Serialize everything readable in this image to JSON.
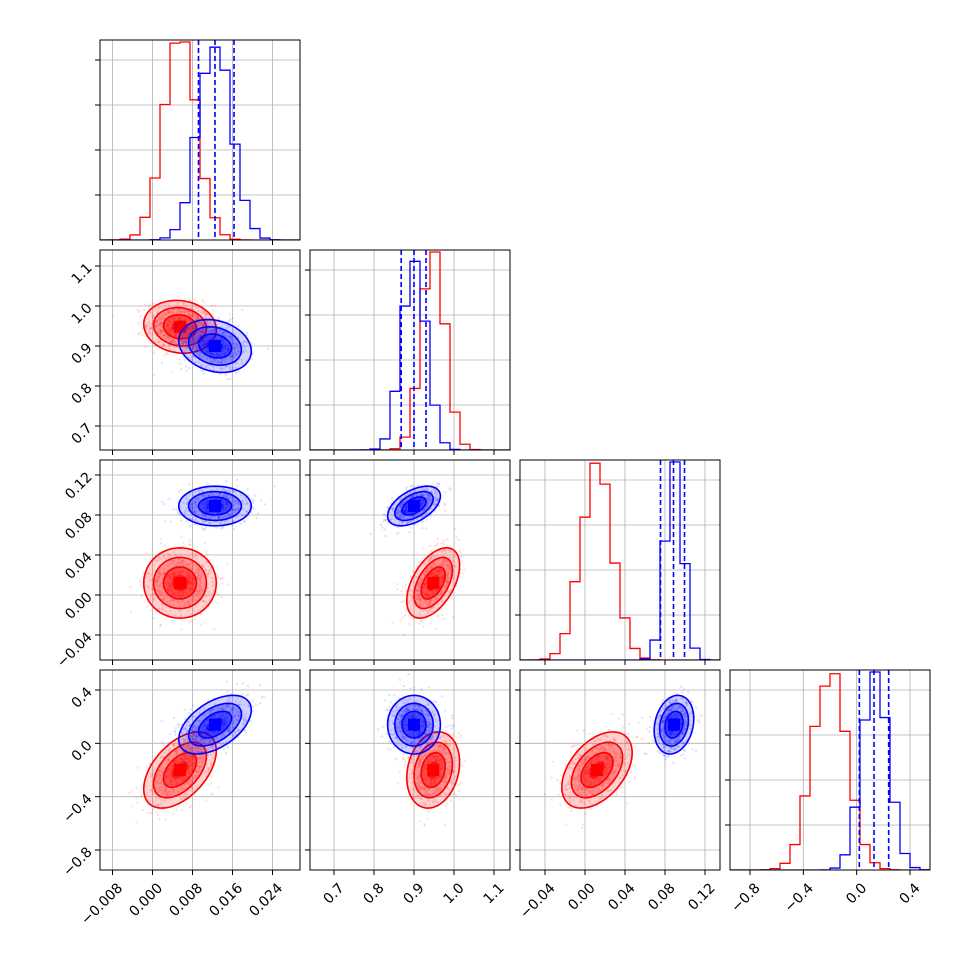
{
  "chart_data": {
    "type": "corner",
    "colors": {
      "red": "#ff0000",
      "blue": "#0000ff"
    },
    "grid": true,
    "parameters": [
      {
        "range": [
          -0.0105,
          0.0295
        ],
        "ticks": [
          -0.008,
          0.0,
          0.008,
          0.016,
          0.024
        ],
        "tick_labels": [
          "−0.008",
          "0.000",
          "0.008",
          "0.016",
          "0.024"
        ]
      },
      {
        "range": [
          0.64,
          1.14
        ],
        "ticks": [
          0.7,
          0.8,
          0.9,
          1.0,
          1.1
        ],
        "tick_labels": [
          "0.7",
          "0.8",
          "0.9",
          "1.0",
          "1.1"
        ]
      },
      {
        "range": [
          -0.065,
          0.135
        ],
        "ticks": [
          -0.04,
          0.0,
          0.04,
          0.08,
          0.12
        ],
        "tick_labels": [
          "−0.04",
          "0.00",
          "0.04",
          "0.08",
          "0.12"
        ]
      },
      {
        "range": [
          -0.95,
          0.55
        ],
        "ticks": [
          -0.8,
          -0.4,
          0.0,
          0.4
        ],
        "tick_labels": [
          "−0.8",
          "−0.4",
          "0.0",
          "0.4"
        ]
      }
    ],
    "y_tick_labels": {
      "1": [
        "0.7",
        "0.8",
        "0.9",
        "1.0",
        "1.1"
      ],
      "2": [
        "−0.04",
        "0.00",
        "0.04",
        "0.08",
        "0.12"
      ],
      "3": [
        "−0.8",
        "−0.4",
        "0.0",
        "0.4"
      ]
    },
    "series": [
      {
        "color": "red",
        "mean": [
          0.0055,
          0.948,
          0.012,
          -0.2
        ],
        "sd": [
          0.0033,
          0.03,
          0.016,
          0.13
        ],
        "corr": {
          "0-1": -0.1,
          "0-2": 0.0,
          "0-3": 0.5,
          "1-2": 0.5,
          "1-3": 0.2,
          "2-3": 0.45
        }
      },
      {
        "color": "blue",
        "mean": [
          0.0125,
          0.9,
          0.089,
          0.14
        ],
        "sd": [
          0.0033,
          0.03,
          0.009,
          0.1
        ],
        "corr": {
          "0-1": -0.2,
          "0-2": 0.0,
          "0-3": 0.5,
          "1-2": 0.5,
          "1-3": 0.0,
          "2-3": 0.2
        }
      }
    ],
    "quantile_lines": {
      "color": "blue",
      "values": [
        [
          0.0092,
          0.0125,
          0.0163
        ],
        [
          0.868,
          0.9,
          0.93
        ],
        [
          0.0755,
          0.0885,
          0.0995
        ],
        [
          0.02,
          0.13,
          0.24
        ]
      ]
    }
  }
}
